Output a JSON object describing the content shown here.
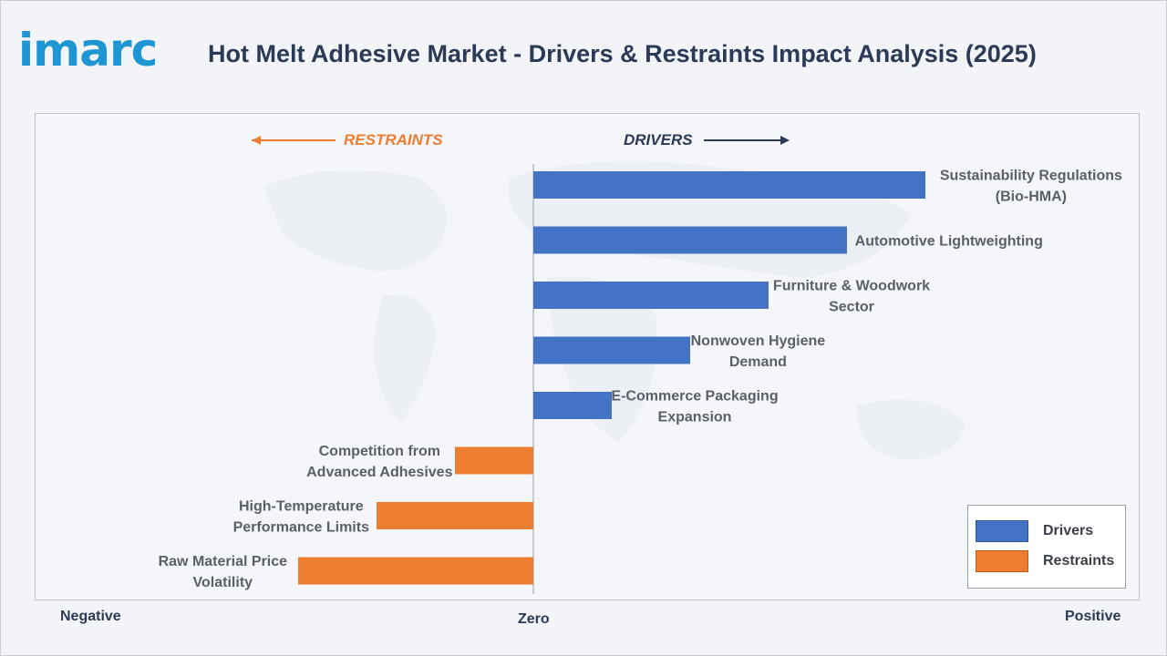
{
  "brand": {
    "logo_text": "imarc"
  },
  "header": {
    "title": "Hot Melt Adhesive Market - Drivers & Restraints Impact Analysis (2025)"
  },
  "direction_labels": {
    "restraints": "RESTRAINTS",
    "drivers": "DRIVERS"
  },
  "axis_labels": {
    "negative": "Negative",
    "zero": "Zero",
    "positive": "Positive"
  },
  "legend": {
    "items": [
      {
        "label": "Drivers",
        "color": "#4472c4"
      },
      {
        "label": "Restraints",
        "color": "#ed7d31"
      }
    ]
  },
  "colors": {
    "drivers": "#4472c4",
    "restraints": "#ed7d31",
    "title": "#2b3a57",
    "logo": "#1e96d3"
  },
  "chart_data": {
    "type": "bar",
    "orientation": "horizontal",
    "xlabel": "",
    "ylabel": "",
    "xlim": [
      -6,
      7.5
    ],
    "grid": false,
    "legend_position": "bottom-right",
    "categories": [
      [
        "Sustainability Regulations",
        "(Bio-HMA)"
      ],
      [
        "Automotive Lightweighting"
      ],
      [
        "Furniture & Woodwork",
        "Sector"
      ],
      [
        "Nonwoven Hygiene",
        "Demand"
      ],
      [
        "E-Commerce Packaging",
        "Expansion"
      ],
      [
        "Competition from",
        "Advanced Adhesives"
      ],
      [
        "High-Temperature",
        "Performance Limits"
      ],
      [
        "Raw Material Price",
        "Volatility"
      ]
    ],
    "series": [
      {
        "name": "Drivers",
        "values": [
          5,
          4,
          3,
          2,
          1,
          null,
          null,
          null
        ]
      },
      {
        "name": "Restraints",
        "values": [
          null,
          null,
          null,
          null,
          null,
          -1,
          -2,
          -3
        ]
      }
    ]
  }
}
